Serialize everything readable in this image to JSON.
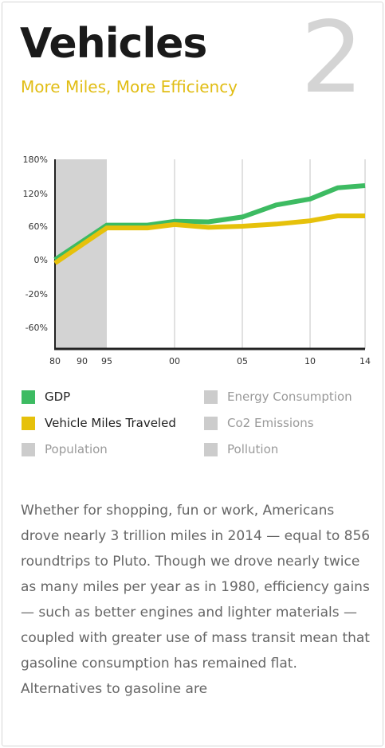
{
  "page": {
    "title": "Vehicles",
    "subtitle": "More Miles, More Efficiency",
    "section_number": "2",
    "body": "Whether for shopping, fun or work, Americans drove nearly 3 trillion miles in 2014 — equal to 856 roundtrips to Pluto. Though we drove nearly twice as many miles per year as in 1980, efficiency gains — such as better engines and lighter materials — coupled with greater use of mass transit mean that gasoline consumption has remained flat. Alternatives to gasoline are"
  },
  "colors": {
    "gdp": "#3dbb62",
    "vmt": "#e6c10b",
    "inactive": "#cccccc",
    "shade": "#d3d3d3",
    "grid": "#e1e1e1",
    "axis": "#222222"
  },
  "legend": {
    "items": [
      {
        "label": "GDP",
        "color": "#3dbb62",
        "active": true
      },
      {
        "label": "Energy Consumption",
        "color": "#cccccc",
        "active": false
      },
      {
        "label": "Vehicle Miles Traveled",
        "color": "#e6c10b",
        "active": true
      },
      {
        "label": "Co2 Emissions",
        "color": "#cccccc",
        "active": false
      },
      {
        "label": "Population",
        "color": "#cccccc",
        "active": false
      },
      {
        "label": "Pollution",
        "color": "#cccccc",
        "active": false
      }
    ]
  },
  "chart_data": {
    "type": "line",
    "title": "",
    "xlabel": "",
    "ylabel": "",
    "y_ticks": [
      {
        "value": 180,
        "label": "180%"
      },
      {
        "value": 120,
        "label": "120%"
      },
      {
        "value": 60,
        "label": "60%"
      },
      {
        "value": 0,
        "label": "0%"
      },
      {
        "value": -20,
        "label": "-20%"
      },
      {
        "value": -60,
        "label": "-60%"
      }
    ],
    "x_ticks": [
      {
        "value": 1980,
        "label": "80"
      },
      {
        "value": 1990,
        "label": "90"
      },
      {
        "value": 1995,
        "label": "95"
      },
      {
        "value": 2000,
        "label": "00"
      },
      {
        "value": 2005,
        "label": "05"
      },
      {
        "value": 2010,
        "label": "10"
      },
      {
        "value": 2014,
        "label": "14"
      }
    ],
    "shaded_range": [
      1980,
      1995
    ],
    "grid": "vertical",
    "series": [
      {
        "name": "GDP",
        "color": "#3dbb62",
        "points": [
          [
            1980,
            0
          ],
          [
            1995,
            62
          ],
          [
            1998,
            62
          ],
          [
            2000,
            69
          ],
          [
            2002.5,
            68
          ],
          [
            2005,
            77
          ],
          [
            2007.5,
            99
          ],
          [
            2010,
            110
          ],
          [
            2012,
            130
          ],
          [
            2014,
            134
          ]
        ]
      },
      {
        "name": "Vehicle Miles Traveled",
        "color": "#e6c10b",
        "points": [
          [
            1980,
            -2
          ],
          [
            1995,
            57
          ],
          [
            1998,
            57
          ],
          [
            2000,
            63
          ],
          [
            2002.5,
            58
          ],
          [
            2005,
            60
          ],
          [
            2007.5,
            64
          ],
          [
            2010,
            70
          ],
          [
            2012,
            79
          ],
          [
            2014,
            79
          ]
        ]
      }
    ]
  }
}
